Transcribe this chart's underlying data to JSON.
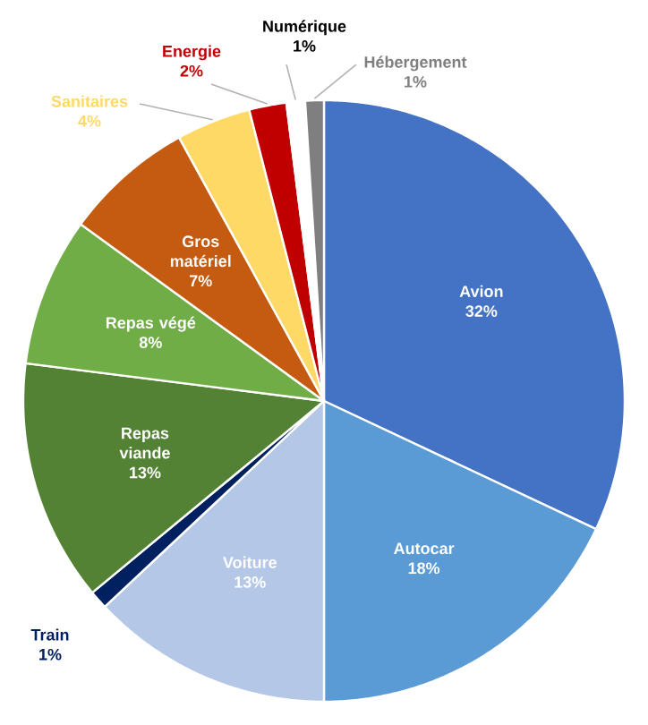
{
  "chart_data": {
    "type": "pie",
    "categories": [
      "Avion",
      "Autocar",
      "Voiture",
      "Train",
      "Repas viande",
      "Repas végé",
      "Gros matériel",
      "Sanitaires",
      "Energie",
      "Numérique",
      "Hébergement"
    ],
    "values": [
      32,
      18,
      13,
      1,
      13,
      8,
      7,
      4,
      2,
      1,
      1
    ],
    "value_labels": [
      "32%",
      "18%",
      "13%",
      "1%",
      "13%",
      "8%",
      "7%",
      "4%",
      "2%",
      "1%",
      "1%"
    ],
    "colors": [
      "#4472c4",
      "#5b9bd5",
      "#b4c7e7",
      "#002060",
      "#548235",
      "#70ad47",
      "#c55a11",
      "#ffd966",
      "#c00000",
      "#ffffff",
      "#7f7f7f"
    ]
  }
}
